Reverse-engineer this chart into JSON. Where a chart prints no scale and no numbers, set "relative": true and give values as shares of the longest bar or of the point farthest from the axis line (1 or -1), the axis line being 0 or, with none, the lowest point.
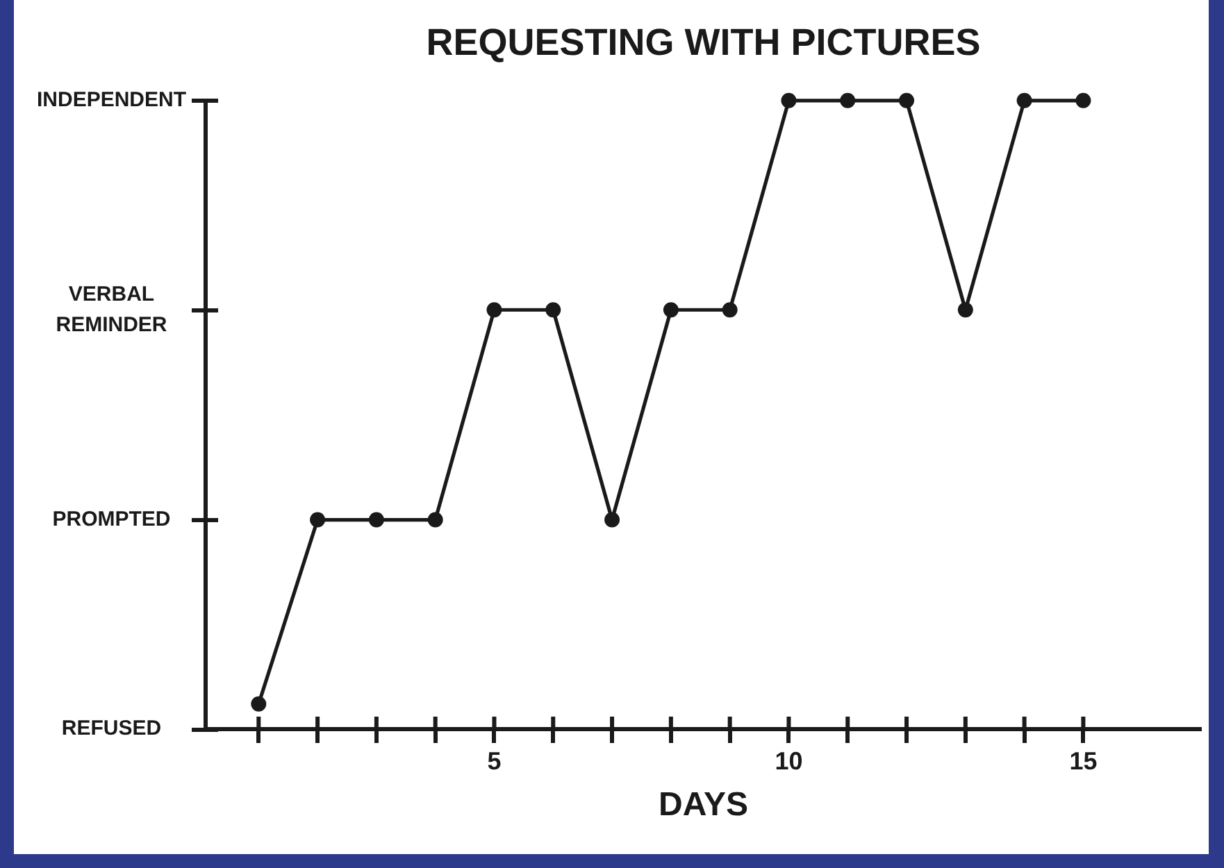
{
  "chart_data": {
    "type": "line",
    "title": "REQUESTING WITH PICTURES",
    "xlabel": "DAYS",
    "x": [
      1,
      2,
      3,
      4,
      5,
      6,
      7,
      8,
      9,
      10,
      11,
      12,
      13,
      14,
      15
    ],
    "series": [
      {
        "color": "#1a1a1a",
        "values": [
          0.04,
          0.333,
          0.333,
          0.333,
          0.667,
          0.667,
          0.333,
          0.667,
          0.667,
          1,
          1,
          1,
          0.667,
          1,
          1
        ]
      }
    ],
    "relative": true,
    "xlim": [
      0.1,
      17
    ],
    "xticks": [
      {
        "value": 1,
        "label": null
      },
      {
        "value": 2,
        "label": null
      },
      {
        "value": 3,
        "label": null
      },
      {
        "value": 4,
        "label": null
      },
      5,
      {
        "value": 6,
        "label": null
      },
      {
        "value": 7,
        "label": null
      },
      {
        "value": 8,
        "label": null
      },
      {
        "value": 9,
        "label": null
      },
      10,
      {
        "value": 11,
        "label": null
      },
      {
        "value": 12,
        "label": null
      },
      {
        "value": 13,
        "label": null
      },
      {
        "value": 14,
        "label": null
      },
      15
    ],
    "annotations": [
      "REFUSED",
      "PROMPTED",
      "VERBAL REMINDER",
      "INDEPENDENT"
    ],
    "grid": false,
    "legend": false,
    "marker": "circle",
    "line_style": "solid"
  }
}
